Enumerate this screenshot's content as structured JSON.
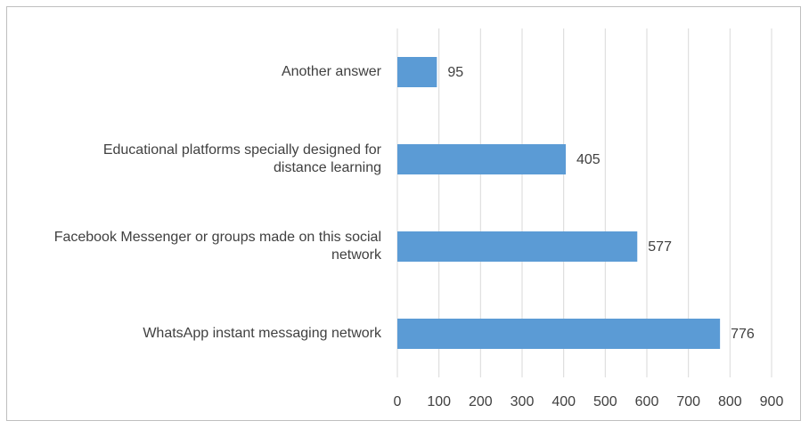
{
  "chart_data": {
    "type": "barh",
    "categories": [
      "Another answer",
      "Educational platforms specially designed for distance learning",
      "Facebook Messenger or groups made on this social network",
      "WhatsApp instant messaging network"
    ],
    "values": [
      95,
      405,
      577,
      776
    ],
    "color": "#5b9bd5",
    "xlim": [
      0,
      900
    ],
    "xticks": [
      0,
      100,
      200,
      300,
      400,
      500,
      600,
      700,
      800,
      900
    ],
    "grid": true
  }
}
